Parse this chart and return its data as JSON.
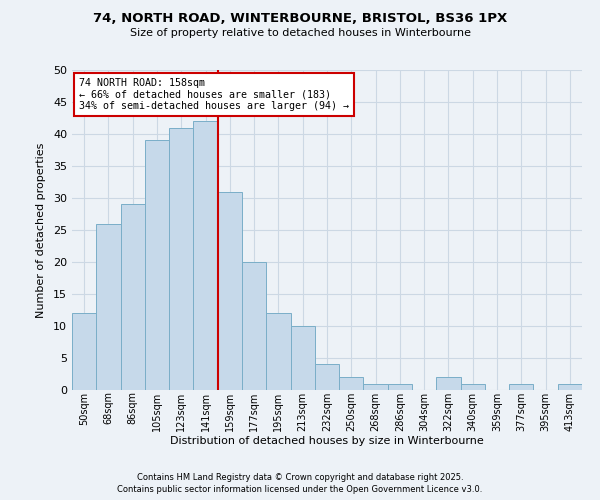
{
  "title": "74, NORTH ROAD, WINTERBOURNE, BRISTOL, BS36 1PX",
  "subtitle": "Size of property relative to detached houses in Winterbourne",
  "xlabel": "Distribution of detached houses by size in Winterbourne",
  "ylabel": "Number of detached properties",
  "footnote1": "Contains HM Land Registry data © Crown copyright and database right 2025.",
  "footnote2": "Contains public sector information licensed under the Open Government Licence v3.0.",
  "bin_labels": [
    "50sqm",
    "68sqm",
    "86sqm",
    "105sqm",
    "123sqm",
    "141sqm",
    "159sqm",
    "177sqm",
    "195sqm",
    "213sqm",
    "232sqm",
    "250sqm",
    "268sqm",
    "286sqm",
    "304sqm",
    "322sqm",
    "340sqm",
    "359sqm",
    "377sqm",
    "395sqm",
    "413sqm"
  ],
  "bar_heights": [
    12,
    26,
    29,
    39,
    41,
    42,
    31,
    20,
    12,
    10,
    4,
    2,
    1,
    1,
    0,
    2,
    1,
    0,
    1,
    0,
    1
  ],
  "bar_color": "#c6d9ea",
  "bar_edge_color": "#7aaec8",
  "grid_color": "#ccd8e4",
  "bg_color": "#edf2f7",
  "vline_x_index": 6,
  "vline_color": "#cc0000",
  "annotation_title": "74 NORTH ROAD: 158sqm",
  "annotation_line1": "← 66% of detached houses are smaller (183)",
  "annotation_line2": "34% of semi-detached houses are larger (94) →",
  "annotation_box_color": "#cc0000",
  "annotation_bg": "#ffffff",
  "ylim": [
    0,
    50
  ],
  "yticks": [
    0,
    5,
    10,
    15,
    20,
    25,
    30,
    35,
    40,
    45,
    50
  ]
}
